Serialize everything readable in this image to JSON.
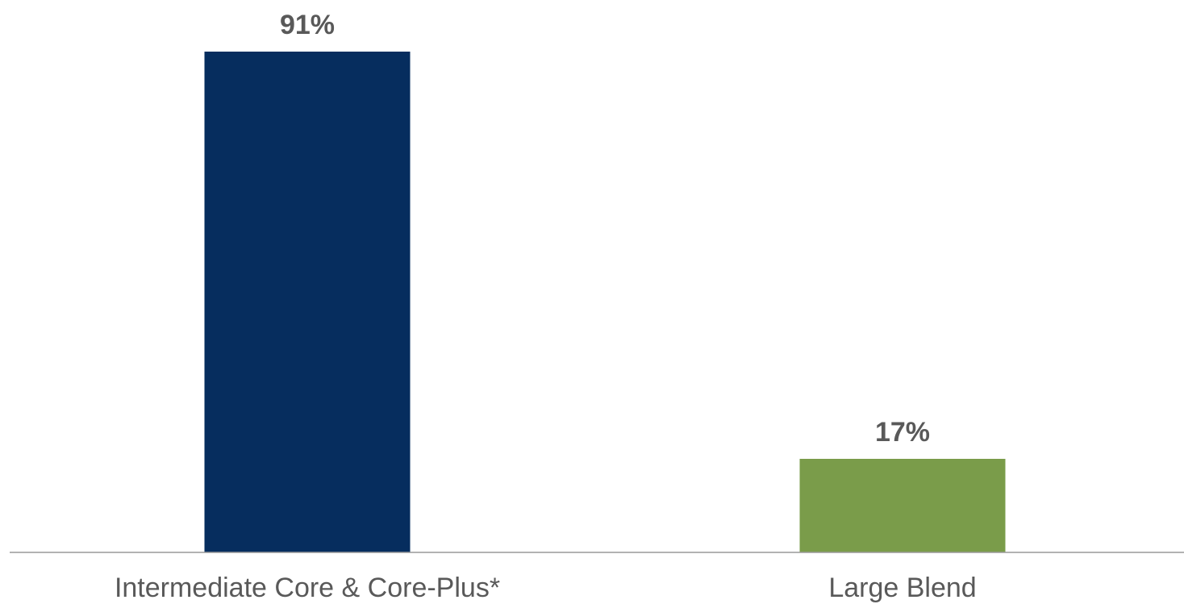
{
  "chart_data": {
    "type": "bar",
    "title": "",
    "xlabel": "",
    "ylabel": "",
    "categories": [
      "Intermediate Core & Core-Plus*",
      "Large Blend"
    ],
    "values": [
      91,
      17
    ],
    "value_labels": [
      "91%",
      "17%"
    ],
    "colors": [
      "#062d5e",
      "#7a9c4a"
    ],
    "ylim": [
      0,
      100
    ],
    "grid": false,
    "legend": "none",
    "axis_color": "#999999"
  }
}
